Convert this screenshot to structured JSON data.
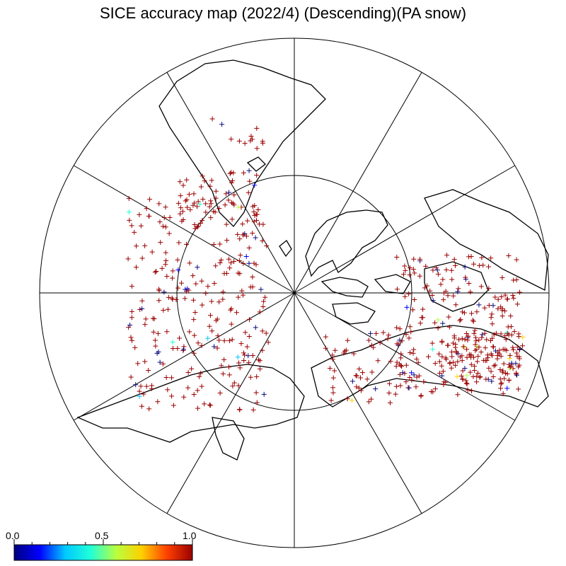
{
  "title": "SICE accuracy map (2022/4) (Descending)(PA snow)",
  "colorbar": {
    "min_label": "0.0",
    "mid_label": "0.5",
    "max_label": "1.0",
    "colors": [
      "#00007f",
      "#0000ff",
      "#00c8ff",
      "#20ffd8",
      "#b8ff40",
      "#ffd000",
      "#ff4000",
      "#9a0000"
    ]
  },
  "map": {
    "projection": "north-polar-stereographic",
    "graticule_circles_latitude": [
      80
    ],
    "meridian_count": 12,
    "marker": "+",
    "color_high": "#9a0000",
    "color_low": "#0a0a80"
  }
}
